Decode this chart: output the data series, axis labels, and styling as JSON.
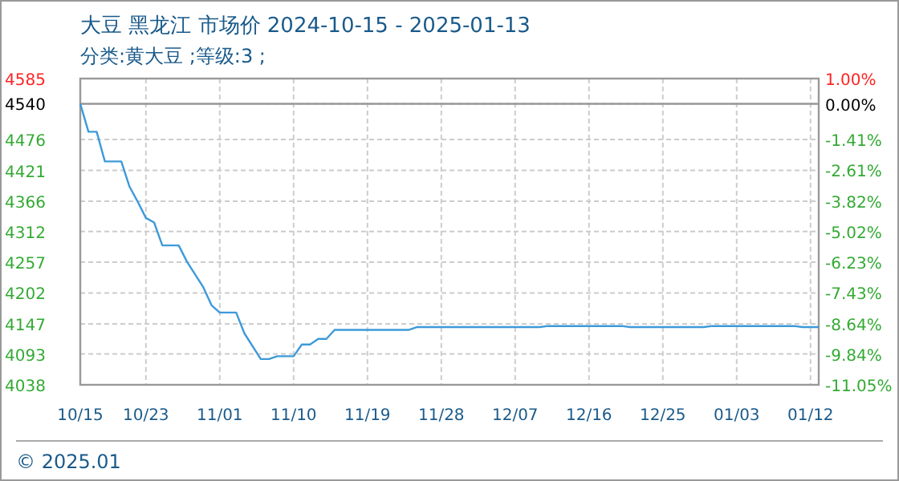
{
  "chart_data": {
    "type": "line",
    "title": "大豆 黑龙江 市场价 2024-10-15 - 2025-01-13",
    "subtitle": "分类:黄大豆 ;等级:3 ;",
    "color": "#3d9ad9",
    "x": [
      "2024-10-15",
      "2024-10-16",
      "2024-10-17",
      "2024-10-18",
      "2024-10-20",
      "2024-10-21",
      "2024-10-22",
      "2024-10-23",
      "2024-10-24",
      "2024-10-25",
      "2024-10-27",
      "2024-10-28",
      "2024-10-30",
      "2024-10-31",
      "2024-11-01",
      "2024-11-03",
      "2024-11-04",
      "2024-11-06",
      "2024-11-07",
      "2024-11-08",
      "2024-11-10",
      "2024-11-11",
      "2024-11-12",
      "2024-11-13",
      "2024-11-14",
      "2024-11-15",
      "2024-11-24",
      "2024-11-25",
      "2024-12-10",
      "2024-12-11",
      "2024-12-20",
      "2024-12-21",
      "2024-12-30",
      "2024-12-31",
      "2025-01-10",
      "2025-01-11",
      "2025-01-13"
    ],
    "values": [
      4540,
      4490,
      4490,
      4437,
      4437,
      4392,
      4365,
      4336,
      4328,
      4287,
      4287,
      4258,
      4212,
      4180,
      4167,
      4167,
      4130,
      4084,
      4084,
      4089,
      4089,
      4110,
      4110,
      4120,
      4120,
      4136,
      4136,
      4141,
      4141,
      4143,
      4143,
      4141,
      4141,
      4143,
      4143,
      4141,
      4141
    ],
    "xlim": [
      "2024-10-15",
      "2025-01-13"
    ],
    "xticks": [
      {
        "value": "2024-10-15",
        "label": "10/15"
      },
      {
        "value": "2024-10-23",
        "label": "10/23"
      },
      {
        "value": "2024-11-01",
        "label": "11/01"
      },
      {
        "value": "2024-11-10",
        "label": "11/10"
      },
      {
        "value": "2024-11-19",
        "label": "11/19"
      },
      {
        "value": "2024-11-28",
        "label": "11/28"
      },
      {
        "value": "2024-12-07",
        "label": "12/07"
      },
      {
        "value": "2024-12-16",
        "label": "12/16"
      },
      {
        "value": "2024-12-25",
        "label": "12/25"
      },
      {
        "value": "2025-01-03",
        "label": "01/03"
      },
      {
        "value": "2025-01-12",
        "label": "01/12"
      }
    ],
    "ylim": [
      4038,
      4585
    ],
    "yticks": [
      4585,
      4540,
      4476,
      4421,
      4366,
      4312,
      4257,
      4202,
      4147,
      4093,
      4038
    ],
    "y2lim": [
      -11.05,
      1.0
    ],
    "y2ticks": [
      {
        "value": 1.0,
        "label": "1.00%"
      },
      {
        "value": 0,
        "label": "0.00%"
      },
      {
        "value": -1.41,
        "label": "-1.41%"
      },
      {
        "value": -2.61,
        "label": "-2.61%"
      },
      {
        "value": -3.82,
        "label": "-3.82%"
      },
      {
        "value": -5.02,
        "label": "-5.02%"
      },
      {
        "value": -6.23,
        "label": "-6.23%"
      },
      {
        "value": -7.43,
        "label": "-7.43%"
      },
      {
        "value": -8.64,
        "label": "-8.64%"
      },
      {
        "value": -9.84,
        "label": "-9.84%"
      },
      {
        "value": -11.05,
        "label": "-11.05%"
      }
    ],
    "ref_lines": [
      {
        "axis": "y",
        "value": 4540,
        "color": "#999999"
      }
    ],
    "grid": true,
    "annotations": [
      "© 2025.01"
    ]
  }
}
